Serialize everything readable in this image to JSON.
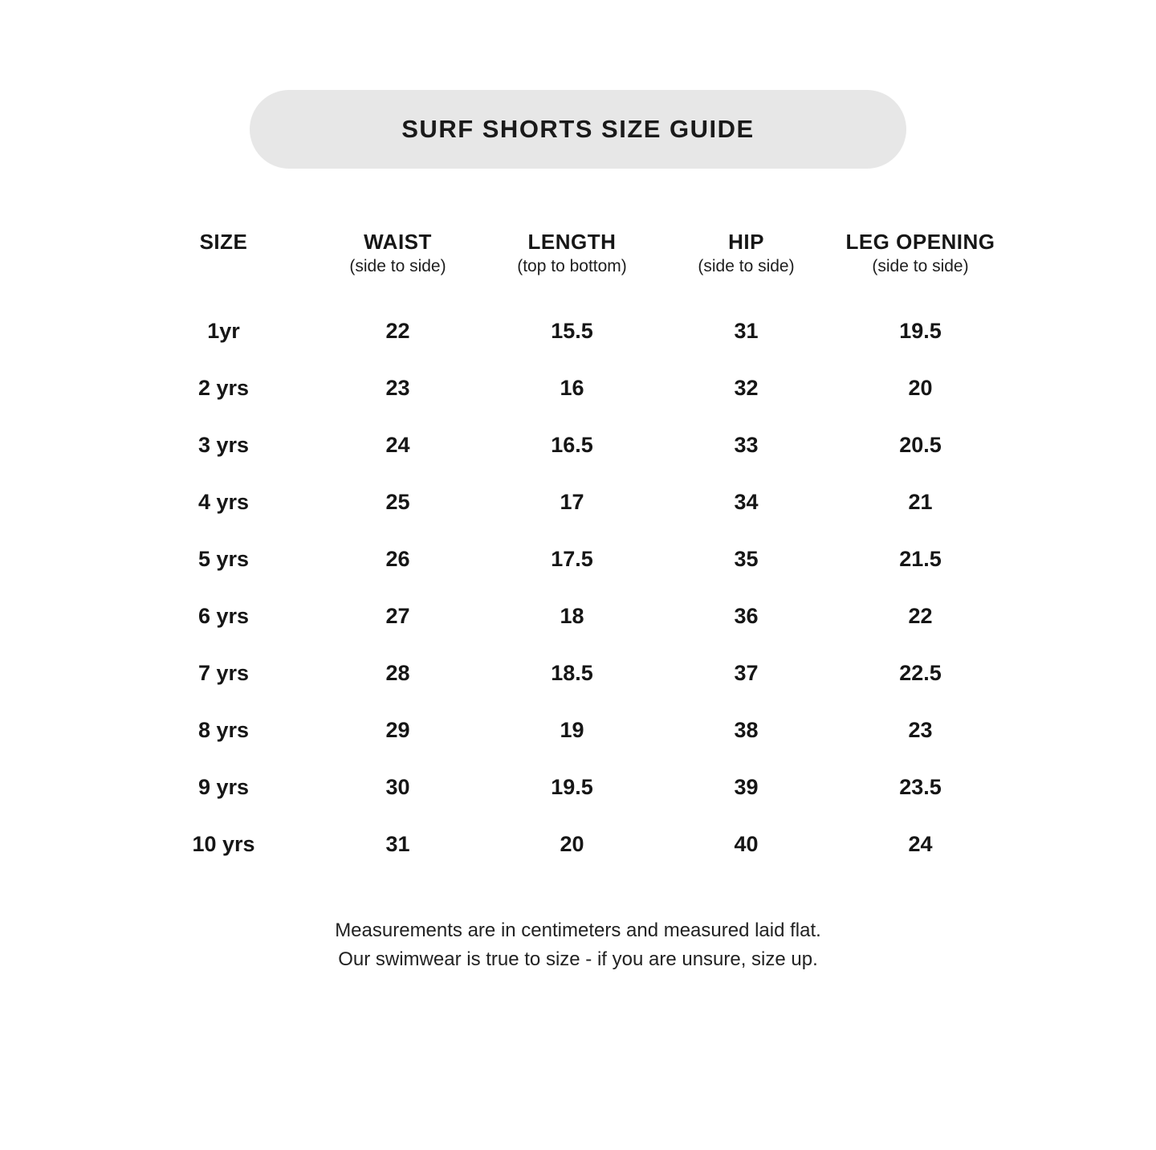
{
  "title": "SURF SHORTS SIZE GUIDE",
  "table": {
    "columns": [
      {
        "label": "SIZE",
        "sub": ""
      },
      {
        "label": "WAIST",
        "sub": "(side to side)"
      },
      {
        "label": "LENGTH",
        "sub": "(top to bottom)"
      },
      {
        "label": "HIP",
        "sub": "(side to side)"
      },
      {
        "label": "LEG OPENING",
        "sub": "(side to side)"
      }
    ],
    "rows": [
      [
        "1yr",
        "22",
        "15.5",
        "31",
        "19.5"
      ],
      [
        "2 yrs",
        "23",
        "16",
        "32",
        "20"
      ],
      [
        "3 yrs",
        "24",
        "16.5",
        "33",
        "20.5"
      ],
      [
        "4 yrs",
        "25",
        "17",
        "34",
        "21"
      ],
      [
        "5 yrs",
        "26",
        "17.5",
        "35",
        "21.5"
      ],
      [
        "6 yrs",
        "27",
        "18",
        "36",
        "22"
      ],
      [
        "7 yrs",
        "28",
        "18.5",
        "37",
        "22.5"
      ],
      [
        "8 yrs",
        "29",
        "19",
        "38",
        "23"
      ],
      [
        "9 yrs",
        "30",
        "19.5",
        "39",
        "23.5"
      ],
      [
        "10 yrs",
        "31",
        "20",
        "40",
        "24"
      ]
    ]
  },
  "footer": {
    "line1": "Measurements are in centimeters and measured laid flat.",
    "line2": "Our swimwear is true to size - if you are unsure, size up."
  },
  "colors": {
    "pill_bg": "#e7e7e7",
    "text": "#161616"
  },
  "chart_data": {
    "type": "table",
    "title": "SURF SHORTS SIZE GUIDE",
    "columns": [
      "SIZE",
      "WAIST (side to side)",
      "LENGTH (top to bottom)",
      "HIP (side to side)",
      "LEG OPENING (side to side)"
    ],
    "rows": [
      [
        "1yr",
        22,
        15.5,
        31,
        19.5
      ],
      [
        "2 yrs",
        23,
        16,
        32,
        20
      ],
      [
        "3 yrs",
        24,
        16.5,
        33,
        20.5
      ],
      [
        "4 yrs",
        25,
        17,
        34,
        21
      ],
      [
        "5 yrs",
        26,
        17.5,
        35,
        21.5
      ],
      [
        "6 yrs",
        27,
        18,
        36,
        22
      ],
      [
        "7 yrs",
        28,
        18.5,
        37,
        22.5
      ],
      [
        "8 yrs",
        29,
        19,
        38,
        23
      ],
      [
        "9 yrs",
        30,
        19.5,
        39,
        23.5
      ],
      [
        "10 yrs",
        31,
        20,
        40,
        24
      ]
    ],
    "units": "centimeters",
    "notes": [
      "Measurements are in centimeters and measured laid flat.",
      "Our swimwear is true to size - if you are unsure, size up."
    ]
  }
}
